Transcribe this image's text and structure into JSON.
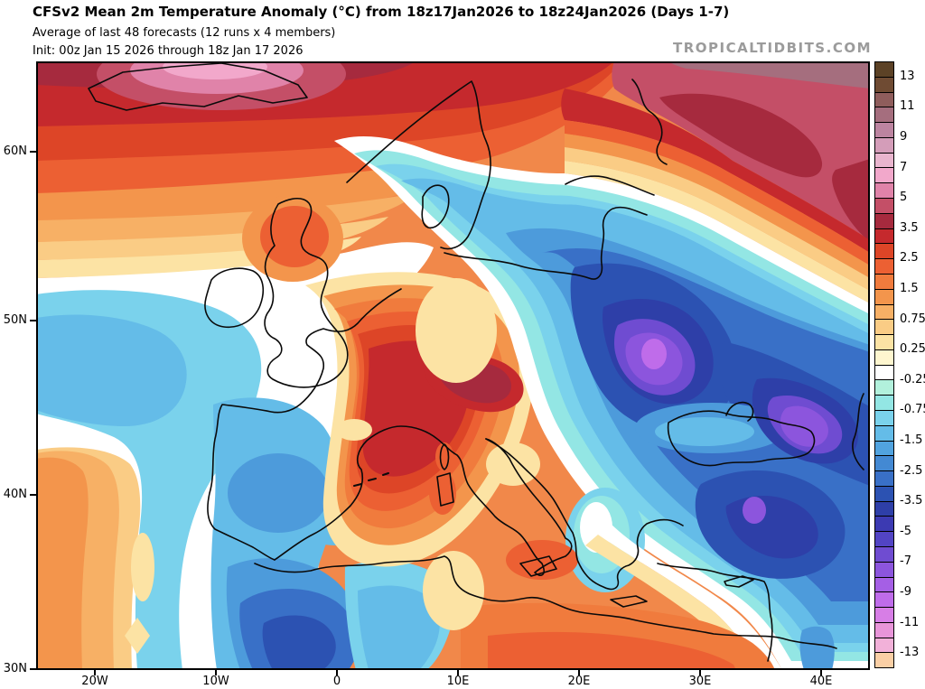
{
  "header": {
    "title": "CFSv2 Mean 2m Temperature Anomaly (°C) from 18z17Jan2026 to 18z24Jan2026 (Days 1-7)",
    "subtitle": "Average of last 48 forecasts (12 runs x 4 members)",
    "init_line": "Init: 00z Jan 15 2026 through 18z Jan 17 2026",
    "watermark": "TROPICALTIDBITS.COM"
  },
  "chart_data": {
    "type": "heatmap",
    "title": "CFSv2 Mean 2m Temperature Anomaly (°C) from 18z17Jan2026 to 18z24Jan2026 (Days 1-7)",
    "subtitle": "Average of last 48 forecasts (12 runs x 4 members)",
    "init_line": "Init: 00z Jan 15 2026 through 18z Jan 17 2026",
    "region": "Europe / North Atlantic / North Africa / Middle East",
    "unit": "°C",
    "x_axis": {
      "label": "longitude",
      "ticks": [
        "20W",
        "10W",
        "0",
        "10E",
        "20E",
        "30E",
        "40E"
      ]
    },
    "y_axis": {
      "label": "latitude",
      "ticks": [
        "60N",
        "50N",
        "40N",
        "30N"
      ]
    },
    "colorbar": {
      "unit": "°C",
      "labels": [
        "13",
        "11",
        "9",
        "7",
        "5",
        "3.5",
        "2.5",
        "1.5",
        "0.75",
        "0.25",
        "-0.25",
        "-0.75",
        "-1.5",
        "-2.5",
        "-3.5",
        "-5",
        "-7",
        "-9",
        "-11",
        "-13"
      ],
      "cell_colors": [
        "#5C4226",
        "#6F4B33",
        "#8F5D5C",
        "#A56E7E",
        "#BC84A0",
        "#D49DB9",
        "#E9B5CE",
        "#F2A8CB",
        "#E083A9",
        "#C44F67",
        "#A62A3E",
        "#C5292D",
        "#DD4527",
        "#EC6033",
        "#F07B3D",
        "#F3954C",
        "#F7B065",
        "#FACC85",
        "#FCE3A4",
        "#FEF6CF",
        "#FFFFFF",
        "#B2F1DC",
        "#93E6E4",
        "#7AD2EC",
        "#64BCE8",
        "#51A3DF",
        "#4389D3",
        "#3970C7",
        "#2C52B2",
        "#2E3FA8",
        "#3C3AB2",
        "#5244C4",
        "#6F4CD1",
        "#8C55DD",
        "#A55FE5",
        "#BF6CEA",
        "#D77EE6",
        "#E895D9",
        "#F2B1D9",
        "#FACFA5"
      ]
    },
    "features": [
      {
        "region": "Iceland",
        "anomaly": "warm",
        "approx_peak_c": 6
      },
      {
        "region": "Arctic / far-north band",
        "anomaly": "warm",
        "approx_peak_c": 3.5
      },
      {
        "region": "UK and western Europe",
        "anomaly": "warm",
        "approx_peak_c": 2.5
      },
      {
        "region": "France / Alps",
        "anomaly": "warm",
        "approx_peak_c": 4.5
      },
      {
        "region": "Northwest Russia (top-right)",
        "anomaly": "warm",
        "approx_peak_c": 5
      },
      {
        "region": "Central Mediterranean / Libya / Egypt",
        "anomaly": "warm",
        "approx_peak_c": 2.5
      },
      {
        "region": "Atlantic west of Iberia",
        "anomaly": "cold",
        "approx_peak_c": -1.5
      },
      {
        "region": "Iberia and Morocco",
        "anomaly": "cold",
        "approx_peak_c": -3.5
      },
      {
        "region": "Baltics / Eastern Europe",
        "anomaly": "cold",
        "approx_peak_c": -5
      },
      {
        "region": "Ukraine / Moldova core",
        "anomaly": "cold",
        "approx_peak_c": -8
      },
      {
        "region": "East of Sea of Azov",
        "anomaly": "cold",
        "approx_peak_c": -7.5
      },
      {
        "region": "Central Turkey",
        "anomaly": "cold",
        "approx_peak_c": -6
      },
      {
        "region": "Greece / Aegean",
        "anomaly": "cold",
        "approx_peak_c": -1
      }
    ],
    "legend_position": "right",
    "grid": false
  }
}
